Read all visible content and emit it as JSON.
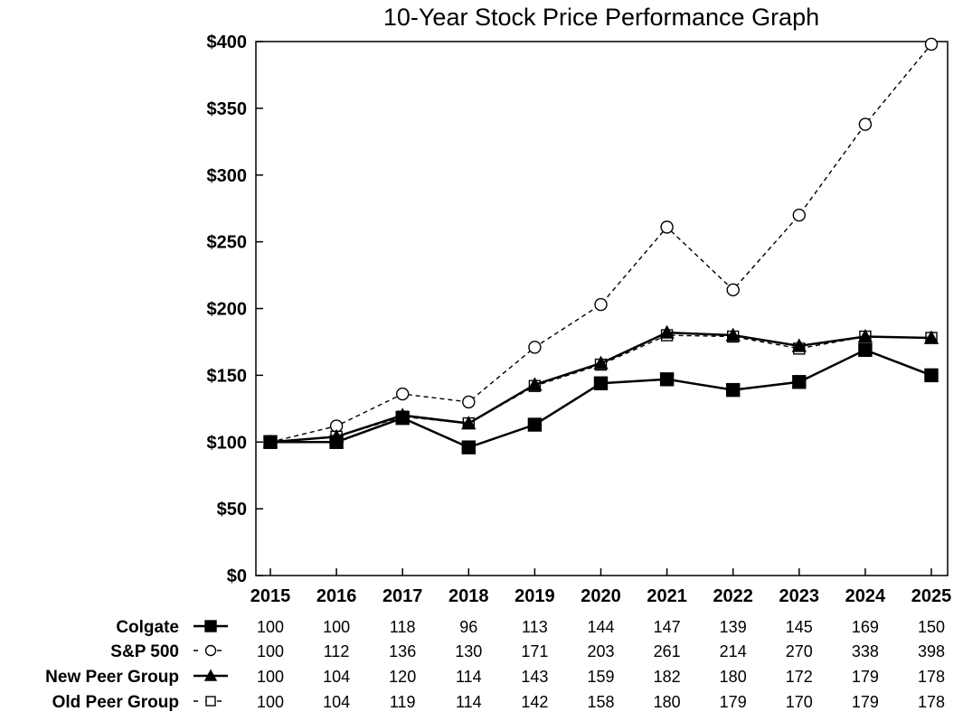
{
  "chart_data": {
    "type": "line",
    "title": "10-Year Stock Price Performance Graph",
    "x": [
      "2015",
      "2016",
      "2017",
      "2018",
      "2019",
      "2020",
      "2021",
      "2022",
      "2023",
      "2024",
      "2025"
    ],
    "ylim": [
      0,
      400
    ],
    "yticks": [
      0,
      50,
      100,
      150,
      200,
      250,
      300,
      350,
      400
    ],
    "ytick_labels": [
      "$0",
      "$50",
      "$100",
      "$150",
      "$200",
      "$250",
      "$300",
      "$350",
      "$400"
    ],
    "grid": false,
    "legend": "table-below",
    "series": [
      {
        "name": "Colgate",
        "marker": "filled-square",
        "line": "solid",
        "color": "#000000",
        "values": [
          100,
          100,
          118,
          96,
          113,
          144,
          147,
          139,
          145,
          169,
          150
        ]
      },
      {
        "name": "S&P 500",
        "marker": "open-circle",
        "line": "dashed",
        "color": "#000000",
        "values": [
          100,
          112,
          136,
          130,
          171,
          203,
          261,
          214,
          270,
          338,
          398
        ]
      },
      {
        "name": "New Peer Group",
        "marker": "filled-triangle",
        "line": "solid",
        "color": "#000000",
        "values": [
          100,
          104,
          120,
          114,
          143,
          159,
          182,
          180,
          172,
          179,
          178
        ]
      },
      {
        "name": "Old Peer Group",
        "marker": "open-square",
        "line": "dashed",
        "color": "#000000",
        "values": [
          100,
          104,
          119,
          114,
          142,
          158,
          180,
          179,
          170,
          179,
          178
        ]
      }
    ]
  }
}
